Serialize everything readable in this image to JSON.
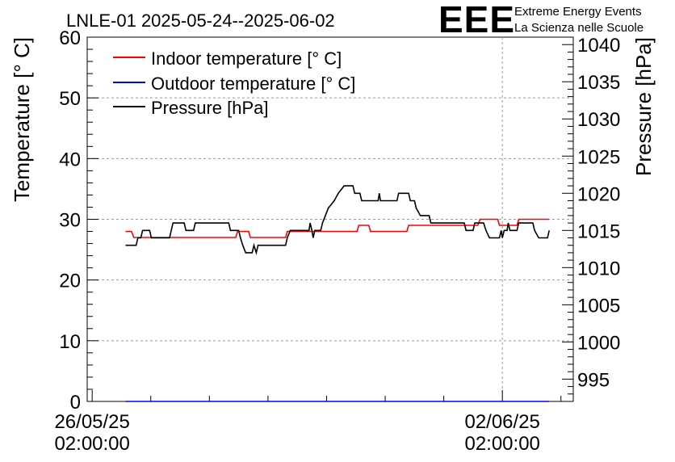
{
  "chart_data": {
    "type": "line",
    "title": "LNLE-01 2025-05-24--2025-06-02",
    "logo": {
      "mark": "EEE",
      "line1": "Extreme Energy Events",
      "line2": "La Scienza nelle Scuole",
      "color": "#1a1aff"
    },
    "ylabel": "Temperature [° C]",
    "y2label": "Pressure [hPa]",
    "ylim": [
      0,
      60
    ],
    "y2lim": [
      992,
      1041
    ],
    "yticks": [
      "0",
      "10",
      "20",
      "30",
      "40",
      "50",
      "60"
    ],
    "y2ticks": [
      "995",
      "1000",
      "1005",
      "1010",
      "1015",
      "1020",
      "1025",
      "1030",
      "1035",
      "1040"
    ],
    "xlim": [
      -0.085,
      8.21
    ],
    "xticks": [
      {
        "x": 0,
        "line1": "26/05/25",
        "line2": "02:00:00"
      },
      {
        "x": 7,
        "line1": "02/06/25",
        "line2": "02:00:00"
      }
    ],
    "grid": true,
    "legend_position": "top-left",
    "series": [
      {
        "name": "Indoor temperature [° C]",
        "axis": "left",
        "color": "#ff0000",
        "points": [
          [
            0.57,
            28.0
          ],
          [
            0.67,
            28.0
          ],
          [
            0.71,
            27.0
          ],
          [
            2.45,
            27.0
          ],
          [
            2.48,
            28.0
          ],
          [
            2.67,
            28.0
          ],
          [
            2.7,
            27.0
          ],
          [
            3.3,
            27.0
          ],
          [
            3.33,
            28.0
          ],
          [
            4.52,
            28.0
          ],
          [
            4.55,
            29.0
          ],
          [
            4.72,
            29.0
          ],
          [
            4.75,
            28.0
          ],
          [
            5.37,
            28.0
          ],
          [
            5.4,
            29.0
          ],
          [
            6.58,
            29.0
          ],
          [
            6.62,
            30.0
          ],
          [
            6.92,
            30.0
          ],
          [
            6.95,
            29.0
          ],
          [
            7.25,
            29.0
          ],
          [
            7.28,
            30.0
          ],
          [
            7.8,
            30.0
          ]
        ]
      },
      {
        "name": "Outdoor temperature [° C]",
        "axis": "left",
        "color": "#0000ff",
        "points": [
          [
            0.57,
            0.0
          ],
          [
            7.8,
            0.0
          ]
        ]
      },
      {
        "name": "Pressure [hPa]",
        "axis": "right",
        "color": "#000000",
        "points": [
          [
            0.57,
            1013.0
          ],
          [
            0.75,
            1013.0
          ],
          [
            0.78,
            1014.0
          ],
          [
            0.83,
            1014.0
          ],
          [
            0.86,
            1015.0
          ],
          [
            0.98,
            1015.0
          ],
          [
            1.01,
            1014.0
          ],
          [
            1.15,
            1014.0
          ],
          [
            1.32,
            1014.0
          ],
          [
            1.35,
            1015.0
          ],
          [
            1.38,
            1016.0
          ],
          [
            1.57,
            1016.0
          ],
          [
            1.6,
            1015.0
          ],
          [
            1.73,
            1015.0
          ],
          [
            1.76,
            1016.0
          ],
          [
            2.33,
            1016.0
          ],
          [
            2.36,
            1015.0
          ],
          [
            2.5,
            1015.0
          ],
          [
            2.53,
            1014.0
          ],
          [
            2.57,
            1013.0
          ],
          [
            2.62,
            1012.0
          ],
          [
            2.73,
            1012.0
          ],
          [
            2.76,
            1013.0
          ],
          [
            2.8,
            1012.0
          ],
          [
            2.83,
            1013.0
          ],
          [
            3.3,
            1013.0
          ],
          [
            3.33,
            1014.0
          ],
          [
            3.38,
            1015.0
          ],
          [
            3.7,
            1015.0
          ],
          [
            3.72,
            1016.0
          ],
          [
            3.75,
            1015.0
          ],
          [
            3.77,
            1014.0
          ],
          [
            3.8,
            1015.0
          ],
          [
            3.9,
            1015.0
          ],
          [
            3.93,
            1016.0
          ],
          [
            3.98,
            1017.0
          ],
          [
            4.03,
            1018.0
          ],
          [
            4.13,
            1019.0
          ],
          [
            4.2,
            1020.0
          ],
          [
            4.3,
            1021.0
          ],
          [
            4.45,
            1021.0
          ],
          [
            4.48,
            1020.0
          ],
          [
            4.57,
            1020.0
          ],
          [
            4.6,
            1019.0
          ],
          [
            4.88,
            1019.0
          ],
          [
            4.9,
            1020.0
          ],
          [
            4.92,
            1019.0
          ],
          [
            5.2,
            1019.0
          ],
          [
            5.23,
            1020.0
          ],
          [
            5.4,
            1020.0
          ],
          [
            5.43,
            1019.0
          ],
          [
            5.5,
            1019.0
          ],
          [
            5.53,
            1018.0
          ],
          [
            5.6,
            1017.0
          ],
          [
            5.75,
            1017.0
          ],
          [
            5.78,
            1016.0
          ],
          [
            6.35,
            1016.0
          ],
          [
            6.38,
            1015.0
          ],
          [
            6.5,
            1015.0
          ],
          [
            6.53,
            1016.0
          ],
          [
            6.68,
            1016.0
          ],
          [
            6.72,
            1015.0
          ],
          [
            6.78,
            1014.0
          ],
          [
            6.95,
            1014.0
          ],
          [
            6.98,
            1015.0
          ],
          [
            7.0,
            1014.0
          ],
          [
            7.03,
            1015.0
          ],
          [
            7.08,
            1015.0
          ],
          [
            7.1,
            1016.0
          ],
          [
            7.13,
            1015.0
          ],
          [
            7.25,
            1015.0
          ],
          [
            7.28,
            1016.0
          ],
          [
            7.52,
            1016.0
          ],
          [
            7.55,
            1015.0
          ],
          [
            7.62,
            1014.0
          ],
          [
            7.77,
            1014.0
          ],
          [
            7.8,
            1015.0
          ]
        ]
      }
    ]
  }
}
